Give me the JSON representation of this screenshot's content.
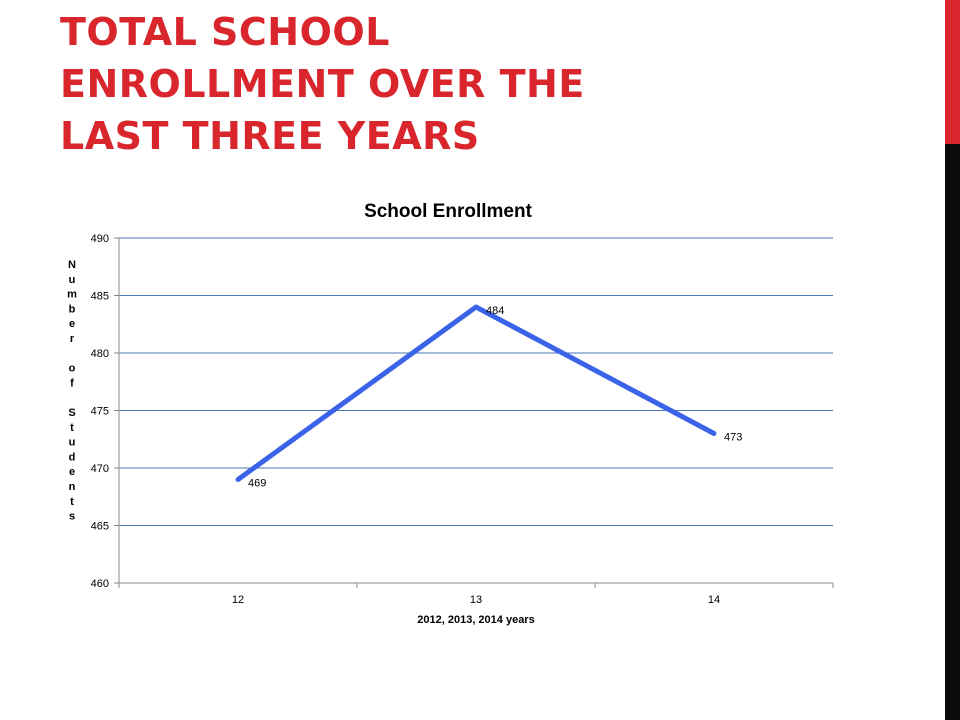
{
  "slide": {
    "title_lines": [
      "TOTAL SCHOOL",
      "ENROLLMENT OVER THE",
      "LAST THREE YEARS"
    ],
    "title_color": "#d8262c",
    "accent_red": "#d8262c",
    "accent_black": "#0a0a0a"
  },
  "chart_data": {
    "type": "line",
    "title": "School Enrollment",
    "categories": [
      "12",
      "13",
      "14"
    ],
    "series": [
      {
        "values": [
          469,
          484,
          473
        ],
        "color": "#3b63e8"
      }
    ],
    "data_labels": [
      "469",
      "484",
      "473"
    ],
    "xlabel": "2012, 2013, 2014 years",
    "ylabel": "Number of Students",
    "ylim": [
      460,
      490
    ],
    "ystep": 5,
    "ytick_labels": [
      "460",
      "465",
      "470",
      "475",
      "480",
      "485",
      "490"
    ],
    "grid": true,
    "grid_color": "#4a74b8",
    "legend": "none"
  }
}
